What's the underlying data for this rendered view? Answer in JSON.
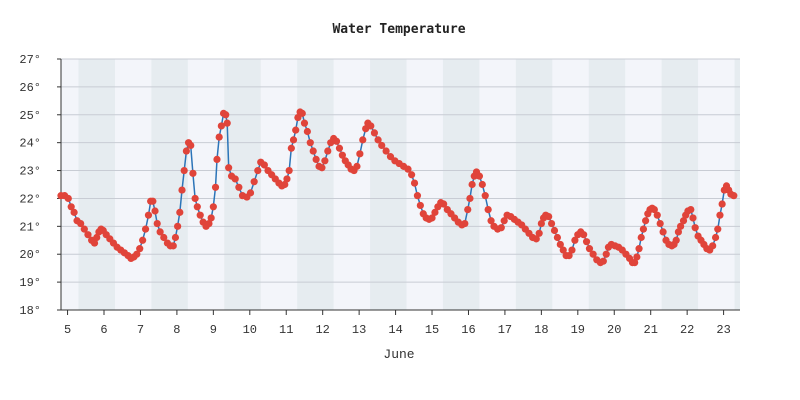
{
  "chart_data": {
    "type": "line",
    "title": "Water Temperature",
    "xlabel": "June",
    "ylabel": "",
    "ylim": [
      18,
      27
    ],
    "y_ticks": [
      18,
      19,
      20,
      21,
      22,
      23,
      24,
      25,
      26,
      27
    ],
    "y_tick_labels": [
      "18°",
      "19°",
      "20°",
      "21°",
      "22°",
      "23°",
      "24°",
      "25°",
      "26°",
      "27°"
    ],
    "x_ticks": [
      5,
      6,
      7,
      8,
      9,
      10,
      11,
      12,
      13,
      14,
      15,
      16,
      17,
      18,
      19,
      20,
      21,
      22,
      23
    ],
    "x_tick_labels": [
      "5",
      "6",
      "7",
      "8",
      "9",
      "10",
      "11",
      "12",
      "13",
      "14",
      "15",
      "16",
      "17",
      "18",
      "19",
      "20",
      "21",
      "22",
      "23"
    ],
    "xlim": [
      4.82,
      23.45
    ],
    "grid": true,
    "colors": {
      "line": "#2b74b8",
      "marker": "#e0443a",
      "band_light": "#f3f5fa",
      "band_dark": "#e6ecf0",
      "grid": "#c8ccd4",
      "axis": "#333333"
    },
    "series": [
      {
        "points": [
          [
            4.82,
            22.1
          ],
          [
            4.92,
            22.1
          ],
          [
            5.02,
            22.0
          ],
          [
            5.1,
            21.7
          ],
          [
            5.18,
            21.5
          ],
          [
            5.26,
            21.2
          ],
          [
            5.36,
            21.1
          ],
          [
            5.46,
            20.9
          ],
          [
            5.56,
            20.7
          ],
          [
            5.66,
            20.5
          ],
          [
            5.74,
            20.4
          ],
          [
            5.8,
            20.6
          ],
          [
            5.86,
            20.8
          ],
          [
            5.92,
            20.9
          ],
          [
            5.98,
            20.85
          ],
          [
            6.06,
            20.7
          ],
          [
            6.16,
            20.55
          ],
          [
            6.26,
            20.4
          ],
          [
            6.36,
            20.25
          ],
          [
            6.46,
            20.15
          ],
          [
            6.56,
            20.05
          ],
          [
            6.66,
            19.95
          ],
          [
            6.74,
            19.85
          ],
          [
            6.82,
            19.9
          ],
          [
            6.9,
            20.0
          ],
          [
            6.98,
            20.2
          ],
          [
            7.06,
            20.5
          ],
          [
            7.14,
            20.9
          ],
          [
            7.22,
            21.4
          ],
          [
            7.28,
            21.9
          ],
          [
            7.34,
            21.9
          ],
          [
            7.4,
            21.55
          ],
          [
            7.46,
            21.1
          ],
          [
            7.54,
            20.8
          ],
          [
            7.64,
            20.6
          ],
          [
            7.74,
            20.4
          ],
          [
            7.82,
            20.3
          ],
          [
            7.9,
            20.3
          ],
          [
            7.96,
            20.6
          ],
          [
            8.02,
            21.0
          ],
          [
            8.08,
            21.5
          ],
          [
            8.14,
            22.3
          ],
          [
            8.2,
            23.0
          ],
          [
            8.26,
            23.7
          ],
          [
            8.32,
            24.0
          ],
          [
            8.38,
            23.9
          ],
          [
            8.44,
            22.9
          ],
          [
            8.5,
            22.0
          ],
          [
            8.56,
            21.7
          ],
          [
            8.64,
            21.4
          ],
          [
            8.72,
            21.15
          ],
          [
            8.8,
            21.0
          ],
          [
            8.88,
            21.1
          ],
          [
            8.94,
            21.3
          ],
          [
            9.0,
            21.7
          ],
          [
            9.06,
            22.4
          ],
          [
            9.1,
            23.4
          ],
          [
            9.16,
            24.2
          ],
          [
            9.22,
            24.6
          ],
          [
            9.28,
            25.05
          ],
          [
            9.34,
            25.0
          ],
          [
            9.38,
            24.7
          ],
          [
            9.42,
            23.1
          ],
          [
            9.5,
            22.8
          ],
          [
            9.6,
            22.7
          ],
          [
            9.7,
            22.4
          ],
          [
            9.8,
            22.1
          ],
          [
            9.92,
            22.05
          ],
          [
            10.02,
            22.2
          ],
          [
            10.12,
            22.6
          ],
          [
            10.22,
            23.0
          ],
          [
            10.3,
            23.3
          ],
          [
            10.4,
            23.2
          ],
          [
            10.5,
            23.0
          ],
          [
            10.6,
            22.85
          ],
          [
            10.7,
            22.7
          ],
          [
            10.8,
            22.55
          ],
          [
            10.88,
            22.45
          ],
          [
            10.96,
            22.5
          ],
          [
            11.02,
            22.7
          ],
          [
            11.08,
            23.0
          ],
          [
            11.14,
            23.8
          ],
          [
            11.2,
            24.1
          ],
          [
            11.26,
            24.45
          ],
          [
            11.32,
            24.9
          ],
          [
            11.38,
            25.1
          ],
          [
            11.44,
            25.05
          ],
          [
            11.5,
            24.7
          ],
          [
            11.58,
            24.4
          ],
          [
            11.66,
            24.0
          ],
          [
            11.74,
            23.7
          ],
          [
            11.82,
            23.4
          ],
          [
            11.9,
            23.15
          ],
          [
            11.98,
            23.1
          ],
          [
            12.06,
            23.35
          ],
          [
            12.14,
            23.7
          ],
          [
            12.22,
            24.0
          ],
          [
            12.3,
            24.15
          ],
          [
            12.38,
            24.05
          ],
          [
            12.46,
            23.8
          ],
          [
            12.54,
            23.55
          ],
          [
            12.62,
            23.35
          ],
          [
            12.7,
            23.2
          ],
          [
            12.78,
            23.05
          ],
          [
            12.86,
            23.0
          ],
          [
            12.94,
            23.15
          ],
          [
            13.02,
            23.6
          ],
          [
            13.1,
            24.1
          ],
          [
            13.18,
            24.5
          ],
          [
            13.24,
            24.7
          ],
          [
            13.32,
            24.6
          ],
          [
            13.42,
            24.35
          ],
          [
            13.52,
            24.1
          ],
          [
            13.62,
            23.9
          ],
          [
            13.74,
            23.7
          ],
          [
            13.86,
            23.5
          ],
          [
            13.98,
            23.35
          ],
          [
            14.1,
            23.25
          ],
          [
            14.22,
            23.15
          ],
          [
            14.34,
            23.05
          ],
          [
            14.44,
            22.85
          ],
          [
            14.52,
            22.55
          ],
          [
            14.6,
            22.1
          ],
          [
            14.68,
            21.75
          ],
          [
            14.76,
            21.45
          ],
          [
            14.84,
            21.3
          ],
          [
            14.92,
            21.25
          ],
          [
            15.0,
            21.3
          ],
          [
            15.08,
            21.5
          ],
          [
            15.16,
            21.7
          ],
          [
            15.24,
            21.85
          ],
          [
            15.32,
            21.8
          ],
          [
            15.42,
            21.6
          ],
          [
            15.52,
            21.45
          ],
          [
            15.62,
            21.3
          ],
          [
            15.72,
            21.15
          ],
          [
            15.82,
            21.05
          ],
          [
            15.9,
            21.1
          ],
          [
            15.98,
            21.6
          ],
          [
            16.04,
            22.0
          ],
          [
            16.1,
            22.5
          ],
          [
            16.16,
            22.8
          ],
          [
            16.22,
            22.95
          ],
          [
            16.3,
            22.8
          ],
          [
            16.38,
            22.5
          ],
          [
            16.46,
            22.1
          ],
          [
            16.54,
            21.6
          ],
          [
            16.62,
            21.2
          ],
          [
            16.7,
            21.0
          ],
          [
            16.8,
            20.9
          ],
          [
            16.9,
            20.95
          ],
          [
            16.98,
            21.2
          ],
          [
            17.06,
            21.4
          ],
          [
            17.16,
            21.35
          ],
          [
            17.26,
            21.25
          ],
          [
            17.36,
            21.15
          ],
          [
            17.46,
            21.05
          ],
          [
            17.56,
            20.9
          ],
          [
            17.66,
            20.75
          ],
          [
            17.76,
            20.6
          ],
          [
            17.86,
            20.55
          ],
          [
            17.94,
            20.75
          ],
          [
            18.0,
            21.1
          ],
          [
            18.06,
            21.3
          ],
          [
            18.12,
            21.4
          ],
          [
            18.2,
            21.35
          ],
          [
            18.28,
            21.1
          ],
          [
            18.36,
            20.85
          ],
          [
            18.44,
            20.6
          ],
          [
            18.52,
            20.35
          ],
          [
            18.6,
            20.15
          ],
          [
            18.68,
            19.95
          ],
          [
            18.76,
            19.95
          ],
          [
            18.84,
            20.15
          ],
          [
            18.92,
            20.5
          ],
          [
            19.0,
            20.7
          ],
          [
            19.08,
            20.8
          ],
          [
            19.16,
            20.7
          ],
          [
            19.24,
            20.45
          ],
          [
            19.32,
            20.2
          ],
          [
            19.42,
            20.0
          ],
          [
            19.52,
            19.8
          ],
          [
            19.62,
            19.7
          ],
          [
            19.7,
            19.75
          ],
          [
            19.78,
            20.0
          ],
          [
            19.84,
            20.25
          ],
          [
            19.92,
            20.35
          ],
          [
            20.02,
            20.3
          ],
          [
            20.12,
            20.25
          ],
          [
            20.22,
            20.15
          ],
          [
            20.32,
            20.0
          ],
          [
            20.42,
            19.85
          ],
          [
            20.5,
            19.7
          ],
          [
            20.56,
            19.7
          ],
          [
            20.62,
            19.9
          ],
          [
            20.68,
            20.2
          ],
          [
            20.74,
            20.6
          ],
          [
            20.8,
            20.9
          ],
          [
            20.86,
            21.2
          ],
          [
            20.92,
            21.45
          ],
          [
            20.98,
            21.6
          ],
          [
            21.04,
            21.65
          ],
          [
            21.1,
            21.6
          ],
          [
            21.18,
            21.4
          ],
          [
            21.26,
            21.1
          ],
          [
            21.34,
            20.8
          ],
          [
            21.42,
            20.5
          ],
          [
            21.5,
            20.35
          ],
          [
            21.58,
            20.3
          ],
          [
            21.64,
            20.35
          ],
          [
            21.7,
            20.5
          ],
          [
            21.76,
            20.8
          ],
          [
            21.82,
            21.0
          ],
          [
            21.9,
            21.2
          ],
          [
            21.96,
            21.4
          ],
          [
            22.02,
            21.55
          ],
          [
            22.1,
            21.6
          ],
          [
            22.16,
            21.3
          ],
          [
            22.22,
            20.95
          ],
          [
            22.3,
            20.65
          ],
          [
            22.38,
            20.5
          ],
          [
            22.46,
            20.35
          ],
          [
            22.54,
            20.2
          ],
          [
            22.62,
            20.15
          ],
          [
            22.7,
            20.3
          ],
          [
            22.78,
            20.6
          ],
          [
            22.84,
            20.9
          ],
          [
            22.9,
            21.4
          ],
          [
            22.96,
            21.8
          ],
          [
            23.02,
            22.3
          ],
          [
            23.08,
            22.45
          ],
          [
            23.14,
            22.3
          ],
          [
            23.2,
            22.15
          ],
          [
            23.28,
            22.1
          ]
        ]
      }
    ]
  }
}
